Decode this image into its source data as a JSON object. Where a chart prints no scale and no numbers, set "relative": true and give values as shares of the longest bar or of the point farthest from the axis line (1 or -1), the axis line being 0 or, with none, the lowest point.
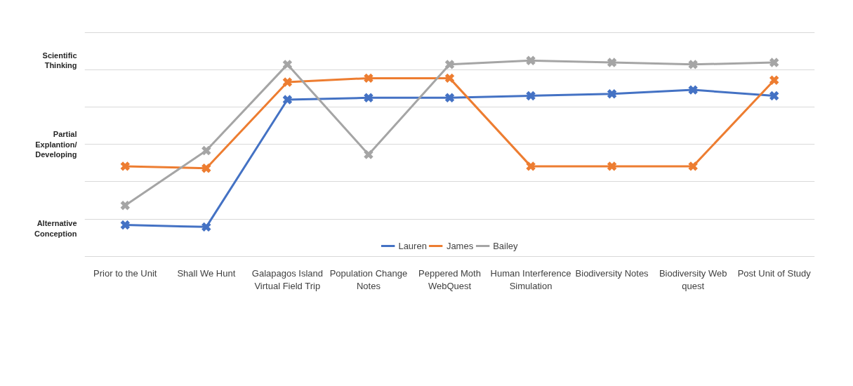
{
  "chart_data": {
    "type": "line",
    "relative": true,
    "marker": "cross",
    "grid": "y",
    "legend": "bottom",
    "categories": [
      "Prior to the Unit",
      "Shall We Hunt",
      "Galapagos Island Virtual Field Trip",
      "Population Change Notes",
      "Peppered Moth WebQuest",
      "Human Interference Simulation",
      "Biodiversity Notes",
      "Biodiversity Web quest",
      "Post Unit of Study"
    ],
    "annotations": [
      "Alternative Conception",
      "Partial Explantion/ Developing",
      "Scientific Thinking"
    ],
    "series": [
      {
        "name": "Lauren",
        "color": "#4472c4",
        "values": [
          0.16,
          0.15,
          0.8,
          0.81,
          0.81,
          0.82,
          0.83,
          0.85,
          0.82
        ]
      },
      {
        "name": "James",
        "color": "#ed7d31",
        "values": [
          0.46,
          0.45,
          0.89,
          0.91,
          0.91,
          0.46,
          0.46,
          0.46,
          0.9
        ]
      },
      {
        "name": "Bailey",
        "color": "#a5a5a5",
        "values": [
          0.26,
          0.54,
          0.98,
          0.52,
          0.98,
          1.0,
          0.99,
          0.98,
          0.99
        ]
      }
    ]
  }
}
